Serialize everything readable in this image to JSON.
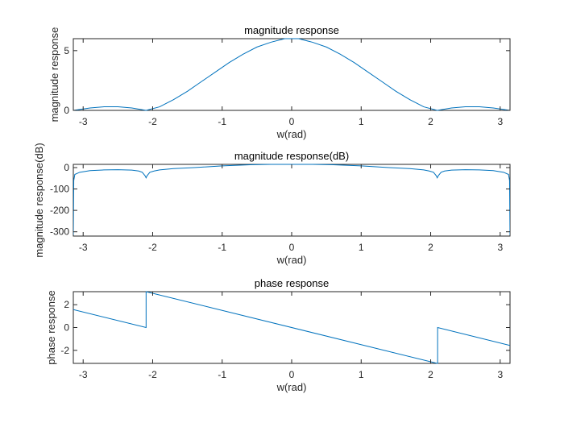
{
  "chart_data": [
    {
      "type": "line",
      "title": "magnitude response",
      "xlabel": "w(rad)",
      "ylabel": "magnitude response",
      "xlim": [
        -3.1416,
        3.1416
      ],
      "ylim": [
        0,
        6
      ],
      "xticks": [
        -3,
        -2,
        -1,
        0,
        1,
        2,
        3
      ],
      "yticks": [
        0,
        5
      ],
      "xtick_labels": [
        "-3",
        "-2",
        "-1",
        "0",
        "1",
        "2",
        "3"
      ],
      "ytick_labels": [
        "0",
        "5"
      ],
      "color": "#0072BD",
      "series": [
        {
          "x": [
            -3.1416,
            -2.9,
            -2.7,
            -2.5,
            -2.3,
            -2.0944,
            -1.9,
            -1.7,
            -1.5,
            -1.3,
            -1.1,
            -0.9,
            -0.7,
            -0.5,
            -0.3,
            -0.1,
            0,
            0.1,
            0.3,
            0.5,
            0.7,
            0.9,
            1.1,
            1.3,
            1.5,
            1.7,
            1.9,
            2.0944,
            2.3,
            2.5,
            2.7,
            2.9,
            3.1416
          ],
          "y": [
            0.0,
            0.2,
            0.3,
            0.3,
            0.2,
            0.0,
            0.3,
            0.9,
            1.6,
            2.4,
            3.2,
            4.0,
            4.7,
            5.3,
            5.7,
            6.0,
            6.0,
            6.0,
            5.7,
            5.3,
            4.7,
            4.0,
            3.2,
            2.4,
            1.6,
            0.9,
            0.3,
            0.0,
            0.2,
            0.3,
            0.3,
            0.2,
            0.0
          ]
        }
      ]
    },
    {
      "type": "line",
      "title": "magnitude response(dB)",
      "xlabel": "w(rad)",
      "ylabel": "magnitude response(dB)",
      "xlim": [
        -3.1416,
        3.1416
      ],
      "ylim": [
        -320,
        15
      ],
      "xticks": [
        -3,
        -2,
        -1,
        0,
        1,
        2,
        3
      ],
      "yticks": [
        0,
        -100,
        -200,
        -300
      ],
      "xtick_labels": [
        "-3",
        "-2",
        "-1",
        "0",
        "1",
        "2",
        "3"
      ],
      "ytick_labels": [
        "0",
        "-100",
        "-200",
        "-300"
      ],
      "color": "#0072BD",
      "series": [
        {
          "x": [
            -3.1416,
            -3.135,
            -3.12,
            -3.05,
            -2.9,
            -2.7,
            -2.5,
            -2.3,
            -2.2,
            -2.15,
            -2.11,
            -2.0944,
            -2.08,
            -2.04,
            -1.98,
            -1.9,
            -1.7,
            -1.4,
            -1.0,
            -0.6,
            -0.3,
            0,
            0.3,
            0.6,
            1.0,
            1.4,
            1.7,
            1.9,
            1.98,
            2.04,
            2.08,
            2.0944,
            2.11,
            2.15,
            2.2,
            2.3,
            2.5,
            2.7,
            2.9,
            3.05,
            3.12,
            3.135,
            3.1416
          ],
          "y": [
            -315,
            -60,
            -32,
            -22,
            -14,
            -11,
            -10,
            -12,
            -16,
            -22,
            -38,
            -48,
            -38,
            -22,
            -16,
            -11,
            -5,
            0,
            8,
            13,
            15,
            15,
            15,
            13,
            8,
            0,
            -5,
            -11,
            -16,
            -22,
            -38,
            -48,
            -38,
            -22,
            -16,
            -12,
            -10,
            -11,
            -14,
            -22,
            -32,
            -60,
            -315
          ]
        }
      ]
    },
    {
      "type": "line",
      "title": "phase response",
      "xlabel": "w(rad)",
      "ylabel": "phase response",
      "xlim": [
        -3.1416,
        3.1416
      ],
      "ylim": [
        -3.1416,
        3.1416
      ],
      "xticks": [
        -3,
        -2,
        -1,
        0,
        1,
        2,
        3
      ],
      "yticks": [
        2,
        0,
        -2
      ],
      "xtick_labels": [
        "-3",
        "-2",
        "-1",
        "0",
        "1",
        "2",
        "3"
      ],
      "ytick_labels": [
        "2",
        "0",
        "-2"
      ],
      "color": "#0072BD",
      "series": [
        {
          "x": [
            -3.1416,
            -2.0944,
            -2.0944,
            2.0944,
            2.0944,
            2.1,
            2.1,
            3.1416
          ],
          "y": [
            1.5708,
            0.0,
            3.1416,
            -3.1416,
            -3.1416,
            -3.1416,
            0.0,
            -1.5708
          ]
        }
      ]
    }
  ]
}
